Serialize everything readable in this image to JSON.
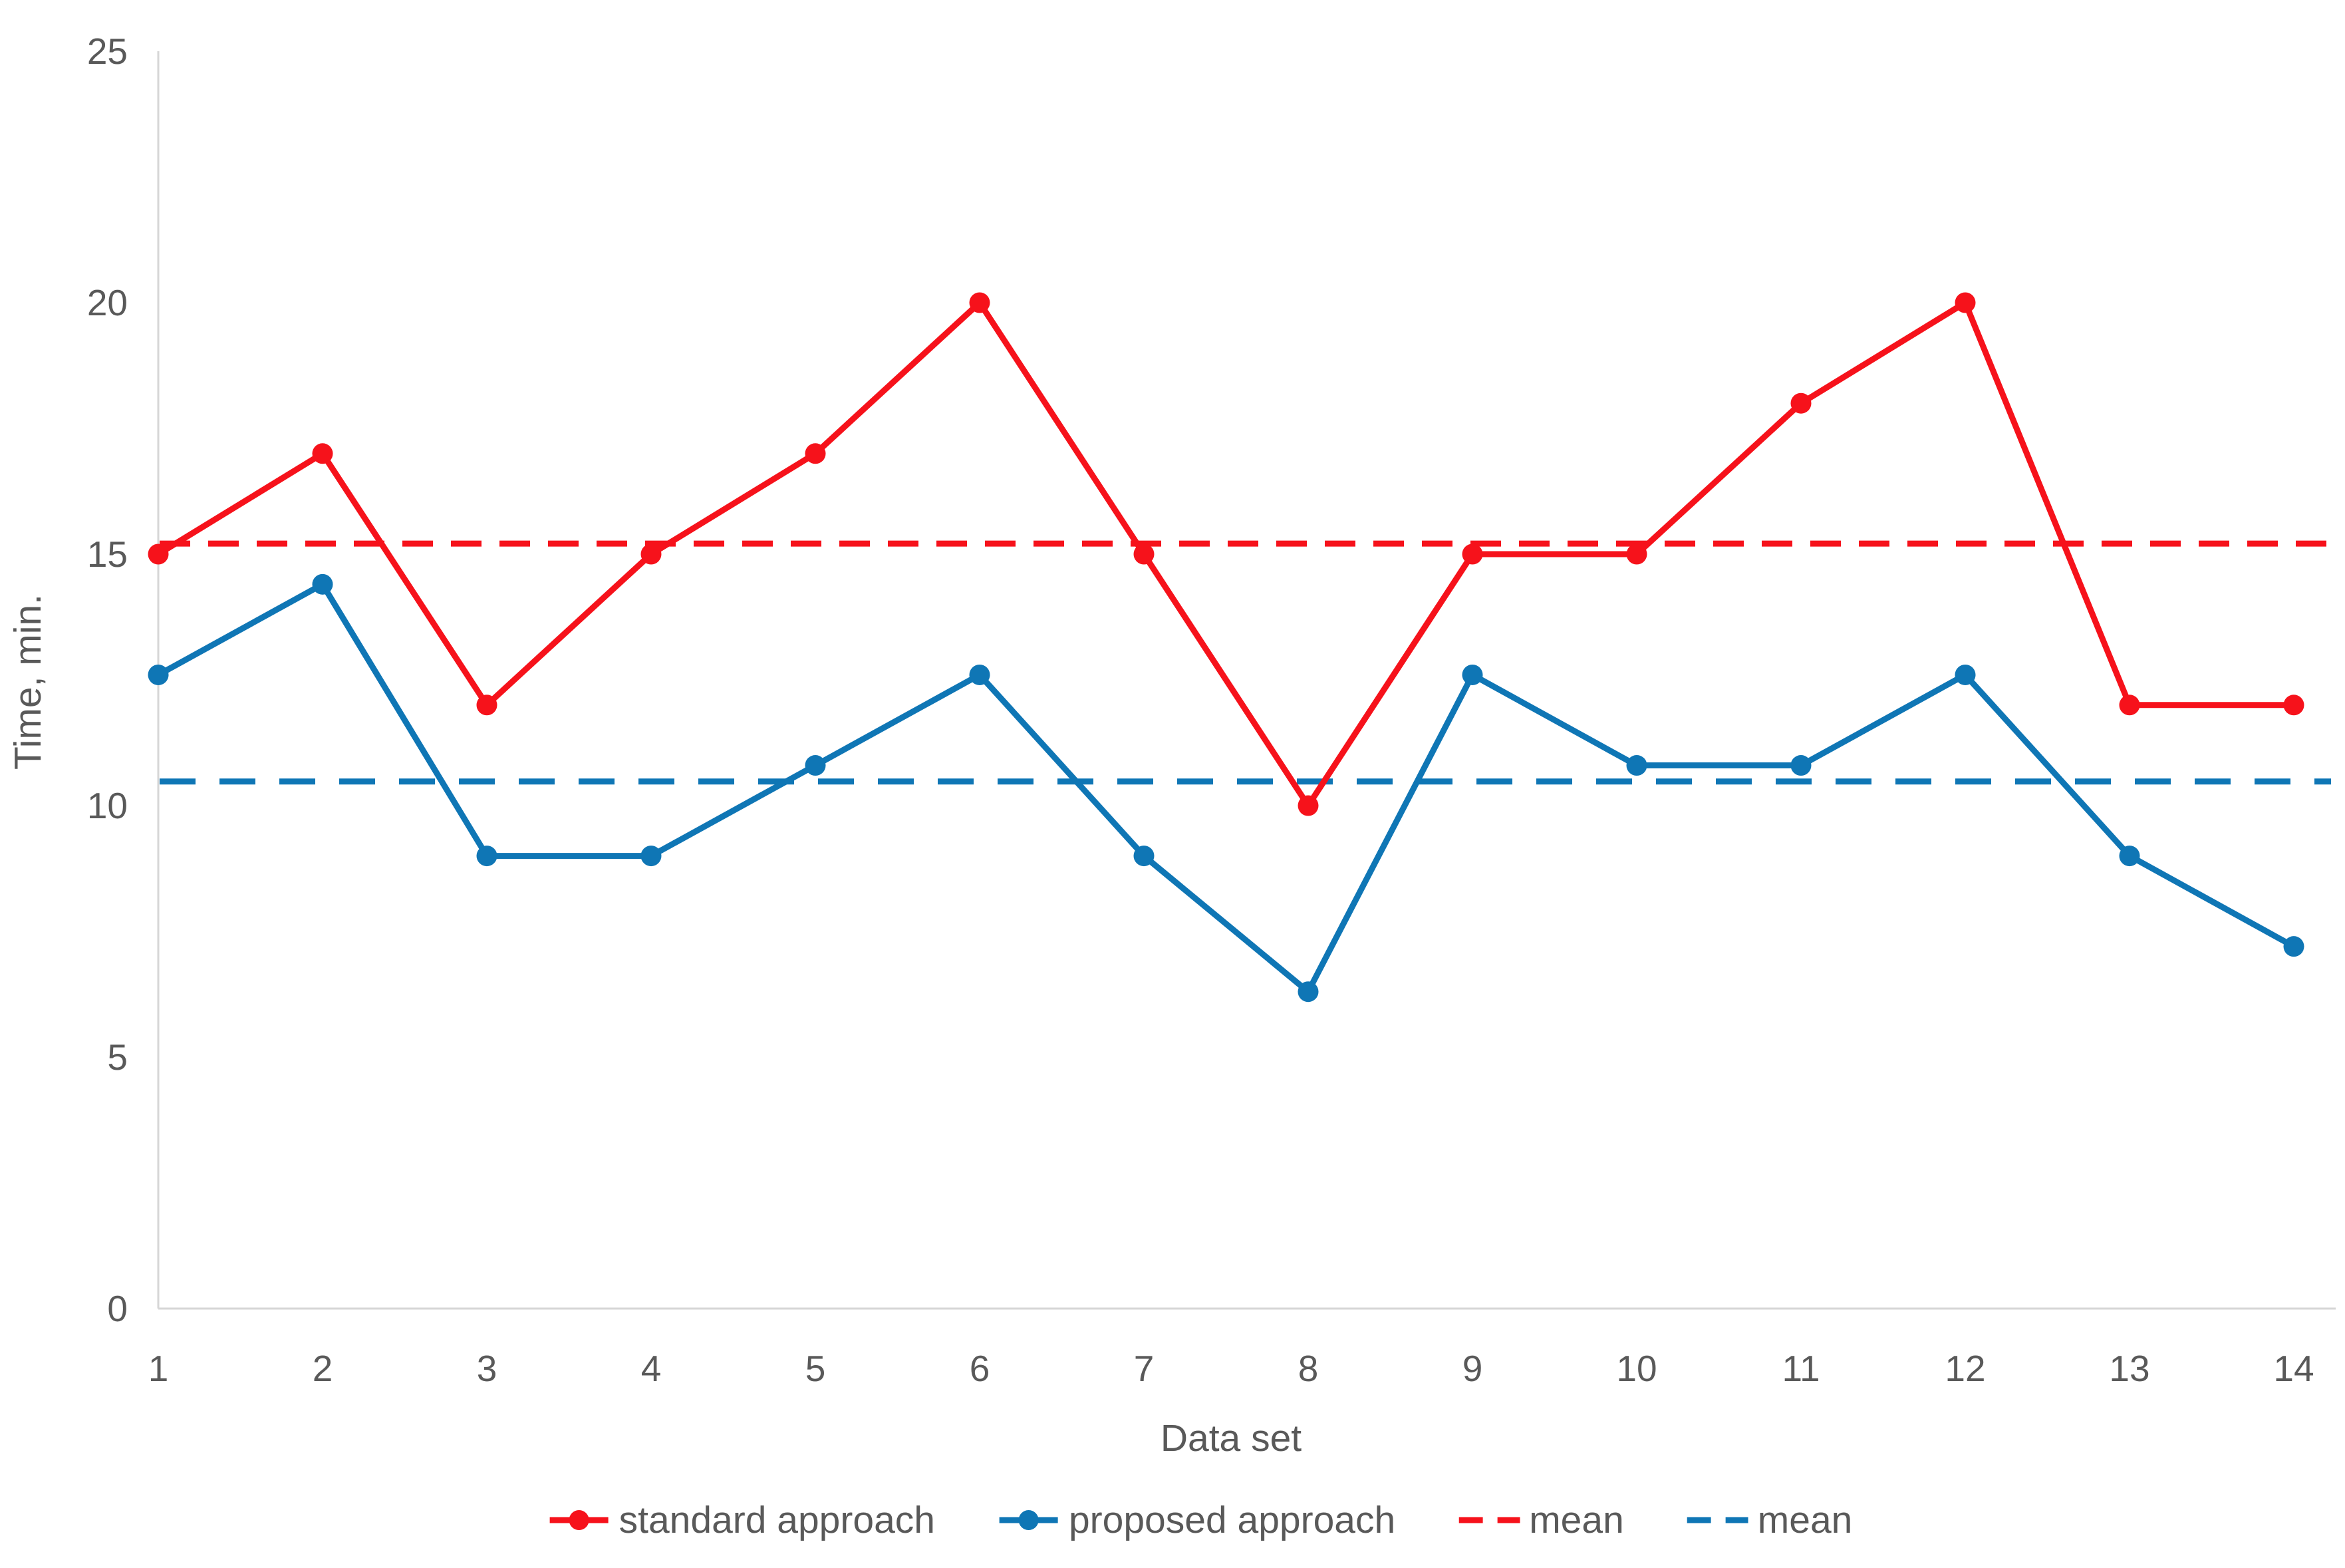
{
  "page": {
    "background": "#FFFFFF"
  },
  "chart_data": {
    "type": "line",
    "title": "",
    "xlabel": "Data set",
    "ylabel": "Time, min.",
    "categories": [
      1,
      2,
      3,
      4,
      5,
      6,
      7,
      8,
      9,
      10,
      11,
      12,
      13,
      14
    ],
    "yticks": [
      0,
      5,
      10,
      15,
      20,
      25
    ],
    "ylim": [
      0,
      25
    ],
    "grid": false,
    "legend_position": "bottom",
    "series": [
      {
        "name": "standard approach",
        "color": "#F6121B",
        "marker": "circle",
        "line_style": "solid",
        "values": [
          15,
          17,
          12,
          15,
          17,
          20,
          15,
          10,
          15,
          15,
          18,
          20,
          12,
          12
        ]
      },
      {
        "name": "proposed approach",
        "color": "#0F76B5",
        "marker": "circle",
        "line_style": "solid",
        "values": [
          12.6,
          14.4,
          9,
          9,
          10.8,
          12.6,
          9,
          6.3,
          12.6,
          10.8,
          10.8,
          12.6,
          9,
          7.2
        ]
      }
    ],
    "mean_lines": [
      {
        "label": "mean",
        "series": "standard approach",
        "value": 15.21,
        "color": "#F6121B",
        "style": "dashed"
      },
      {
        "label": "mean",
        "series": "proposed approach",
        "value": 10.48,
        "color": "#0F76B5",
        "style": "dashed"
      }
    ],
    "axis_color": "#D6D6D6",
    "text_color": "#595959"
  }
}
